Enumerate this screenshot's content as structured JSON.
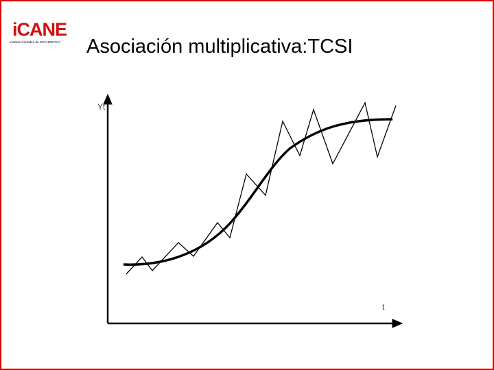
{
  "logo": {
    "name": "iCANE",
    "subtitle": "Instituto Cántabro de ESTADÍSTICA"
  },
  "title": "Asociación multiplicativa:TCSI",
  "figure": {
    "y_label": "Yt",
    "x_label": "t"
  }
}
